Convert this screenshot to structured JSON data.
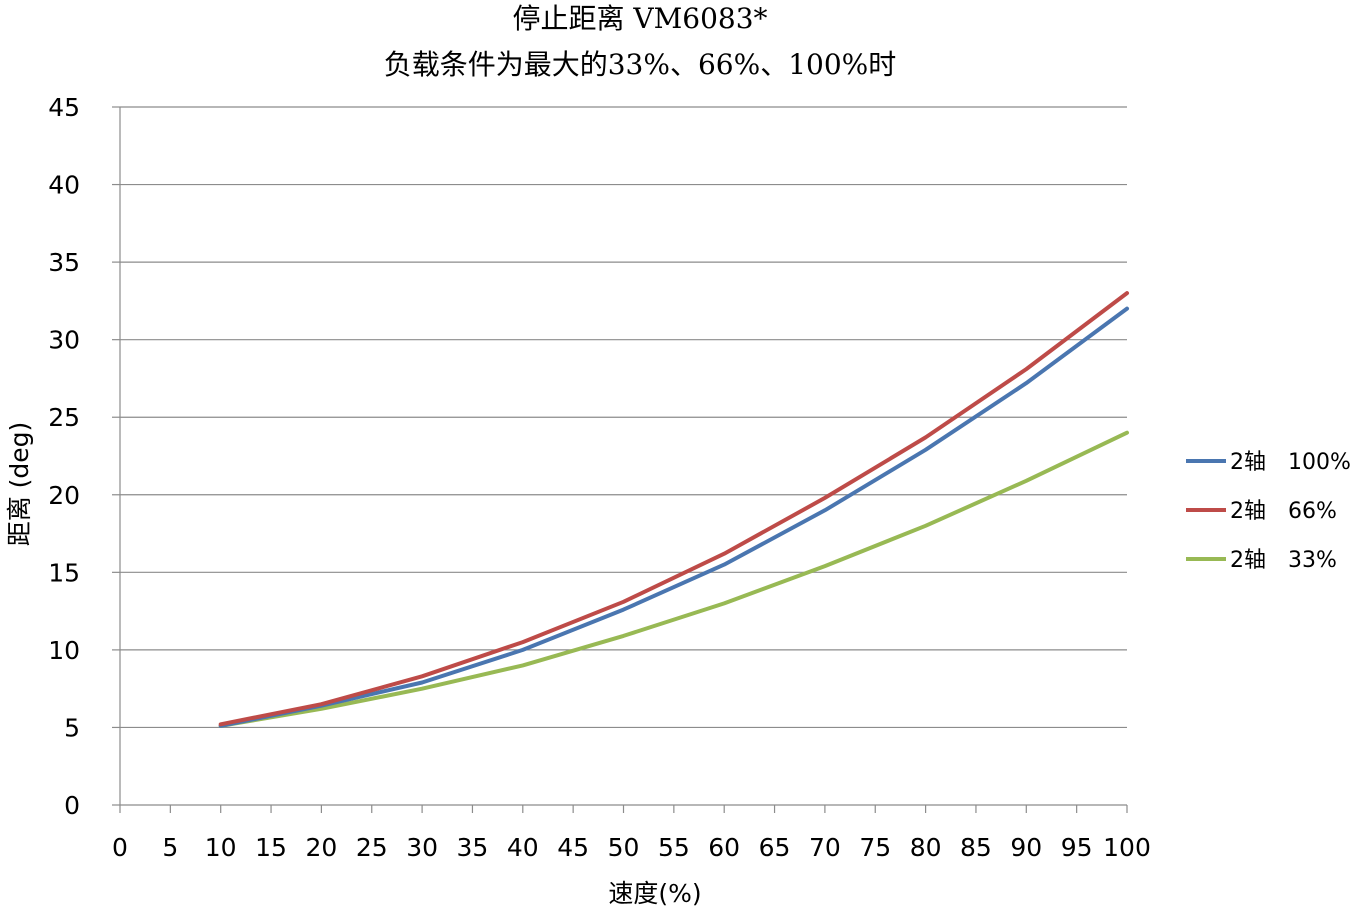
{
  "chart_data": {
    "type": "line",
    "title": "停止距离 VM6083*",
    "subtitle": "负载条件为最大的33%、66%、100%时",
    "xlabel": "速度(%)",
    "ylabel": "距离 (deg)",
    "x": [
      10,
      20,
      30,
      40,
      50,
      60,
      70,
      80,
      90,
      100
    ],
    "xlim": [
      0,
      100
    ],
    "ylim": [
      0,
      45
    ],
    "x_ticks": [
      "0",
      "5",
      "10",
      "15",
      "20",
      "25",
      "30",
      "35",
      "40",
      "45",
      "50",
      "55",
      "60",
      "65",
      "70",
      "75",
      "80",
      "85",
      "90",
      "95",
      "100"
    ],
    "y_ticks": [
      "0",
      "5",
      "10",
      "15",
      "20",
      "25",
      "30",
      "35",
      "40",
      "45"
    ],
    "grid": "horizontal",
    "legend_position": "right",
    "series": [
      {
        "name": "2轴　100%",
        "color": "#4a76b0",
        "values": [
          5.1,
          6.4,
          7.9,
          10.0,
          12.6,
          15.5,
          19.0,
          22.9,
          27.2,
          32.0
        ]
      },
      {
        "name": "2轴　66%",
        "color": "#be4b48",
        "values": [
          5.2,
          6.5,
          8.3,
          10.5,
          13.1,
          16.2,
          19.8,
          23.7,
          28.1,
          33.0
        ]
      },
      {
        "name": "2轴　33%",
        "color": "#98b954",
        "values": [
          5.1,
          6.2,
          7.5,
          9.0,
          10.9,
          13.0,
          15.4,
          18.0,
          20.9,
          24.0
        ]
      }
    ]
  }
}
